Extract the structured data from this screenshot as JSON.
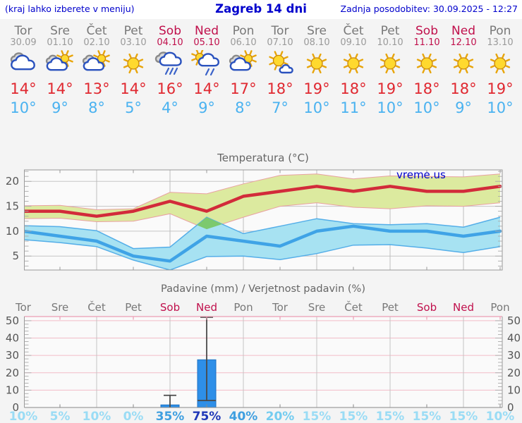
{
  "header": {
    "left_note": "(kraj lahko izberete v meniju)",
    "title": "Zagreb 14 dni",
    "updated": "Zadnja posodobitev: 30.09.2025 - 12:27"
  },
  "watermark": "vreme.us",
  "colors": {
    "accent_blue": "#0000cc",
    "weekend": "#c0104c",
    "weekday": "#787878",
    "date_gray": "#9a9a9a",
    "tmax_red": "#e02830",
    "tmin_blue": "#4ab2f0",
    "temp_line_max": "#d22b3a",
    "temp_line_min": "#3fa3e6",
    "band_max_fill": "#dcea9f",
    "band_max_edge": "#e9a1a1",
    "band_min_fill": "#a7e2f2",
    "band_min_edge": "#54aee8",
    "band_overlap": "#7cc96e",
    "bar_blue": "#2e8fe8",
    "bar_edge": "#1f72c4",
    "whisker": "#4a4a4a",
    "grid_gray": "#c6c6c6",
    "grid_pink": "#f2bcc8",
    "border_pink": "#ec9db4",
    "axis_gray": "#999999",
    "label_gray": "#555555",
    "plot_bg": "#fafafa",
    "prob_low": "#9adcf5",
    "prob_mid20": "#73ccf0",
    "prob_mid": "#3f9fe0",
    "prob_high": "#2038b8"
  },
  "days": [
    {
      "name": "Tor",
      "date": "30.09",
      "weekend": false,
      "icon": "cloudy",
      "tmax": 14,
      "tmin": 10
    },
    {
      "name": "Sre",
      "date": "01.10",
      "weekend": false,
      "icon": "partly-cloudy",
      "tmax": 14,
      "tmin": 9
    },
    {
      "name": "Čet",
      "date": "02.10",
      "weekend": false,
      "icon": "partly-cloudy",
      "tmax": 13,
      "tmin": 8
    },
    {
      "name": "Pet",
      "date": "03.10",
      "weekend": false,
      "icon": "sunny",
      "tmax": 14,
      "tmin": 5
    },
    {
      "name": "Sob",
      "date": "04.10",
      "weekend": true,
      "icon": "rain",
      "tmax": 16,
      "tmin": 4
    },
    {
      "name": "Ned",
      "date": "05.10",
      "weekend": true,
      "icon": "sun-rain",
      "tmax": 14,
      "tmin": 9
    },
    {
      "name": "Pon",
      "date": "06.10",
      "weekend": false,
      "icon": "partly-cloudy",
      "tmax": 17,
      "tmin": 8
    },
    {
      "name": "Tor",
      "date": "07.10",
      "weekend": false,
      "icon": "sun-cloud",
      "tmax": 18,
      "tmin": 7
    },
    {
      "name": "Sre",
      "date": "08.10",
      "weekend": false,
      "icon": "sunny",
      "tmax": 19,
      "tmin": 10
    },
    {
      "name": "Čet",
      "date": "09.10",
      "weekend": false,
      "icon": "sunny",
      "tmax": 18,
      "tmin": 11
    },
    {
      "name": "Pet",
      "date": "10.10",
      "weekend": false,
      "icon": "sunny",
      "tmax": 19,
      "tmin": 10
    },
    {
      "name": "Sob",
      "date": "11.10",
      "weekend": true,
      "icon": "sunny",
      "tmax": 18,
      "tmin": 10
    },
    {
      "name": "Ned",
      "date": "12.10",
      "weekend": true,
      "icon": "sunny",
      "tmax": 18,
      "tmin": 9
    },
    {
      "name": "Pon",
      "date": "13.10",
      "weekend": false,
      "icon": "sunny",
      "tmax": 19,
      "tmin": 10
    }
  ],
  "chart_data": [
    {
      "type": "line",
      "title": "Temperatura (°C)",
      "categories": [
        "Tor",
        "Sre",
        "Čet",
        "Pet",
        "Sob",
        "Ned",
        "Pon",
        "Tor",
        "Sre",
        "Čet",
        "Pet",
        "Sob",
        "Ned",
        "Pon"
      ],
      "ylim": [
        2.2,
        22.3
      ],
      "yticks": [
        5,
        10,
        15,
        20
      ],
      "grid": true,
      "series": [
        {
          "name": "tmax",
          "values": [
            14,
            14,
            13,
            14,
            16,
            14,
            17,
            18,
            19,
            18,
            19,
            18,
            18,
            19
          ]
        },
        {
          "name": "tmax_band_upper",
          "values": [
            15.1,
            15.2,
            14.3,
            14.5,
            17.8,
            17.5,
            19.5,
            21.2,
            21.5,
            20.5,
            21.1,
            21.0,
            20.9,
            21.5
          ]
        },
        {
          "name": "tmax_band_lower",
          "values": [
            12.5,
            12.6,
            11.9,
            12.0,
            13.5,
            10.4,
            12.8,
            15.0,
            15.7,
            14.8,
            14.5,
            15.1,
            15.0,
            15.7
          ]
        },
        {
          "name": "tmin",
          "values": [
            10,
            9,
            8,
            5,
            4,
            9,
            8,
            7,
            10,
            11,
            10,
            10,
            9,
            10
          ]
        },
        {
          "name": "tmin_band_upper",
          "values": [
            11.1,
            10.9,
            10.1,
            6.5,
            6.8,
            12.8,
            9.5,
            11.0,
            12.5,
            11.5,
            11.3,
            11.5,
            10.8,
            12.8
          ]
        },
        {
          "name": "tmin_band_lower",
          "values": [
            8.3,
            7.7,
            6.9,
            4.2,
            2.2,
            4.9,
            5.0,
            4.3,
            5.5,
            7.2,
            7.3,
            6.6,
            5.7,
            6.9
          ]
        }
      ]
    },
    {
      "type": "bar",
      "title": "Padavine (mm) / Verjetnost padavin (%)",
      "categories": [
        "Tor",
        "Sre",
        "Čet",
        "Pet",
        "Sob",
        "Ned",
        "Pon",
        "Tor",
        "Sre",
        "Čet",
        "Pet",
        "Sob",
        "Ned",
        "Pon"
      ],
      "ylim": [
        0,
        52.4
      ],
      "yticks": [
        0,
        10,
        20,
        30,
        40,
        50
      ],
      "values": [
        0,
        0,
        0,
        0,
        1.5,
        27.5,
        0,
        0,
        0,
        0,
        0,
        0,
        0,
        0
      ],
      "whiskers": [
        null,
        null,
        null,
        null,
        {
          "low": 0,
          "high": 7
        },
        {
          "low": 4,
          "high": 52
        },
        null,
        null,
        null,
        null,
        null,
        null,
        null,
        null
      ],
      "probabilities": [
        10,
        5,
        10,
        0,
        35,
        75,
        40,
        20,
        15,
        15,
        15,
        15,
        15,
        10
      ],
      "probability_suffix": "%"
    }
  ]
}
